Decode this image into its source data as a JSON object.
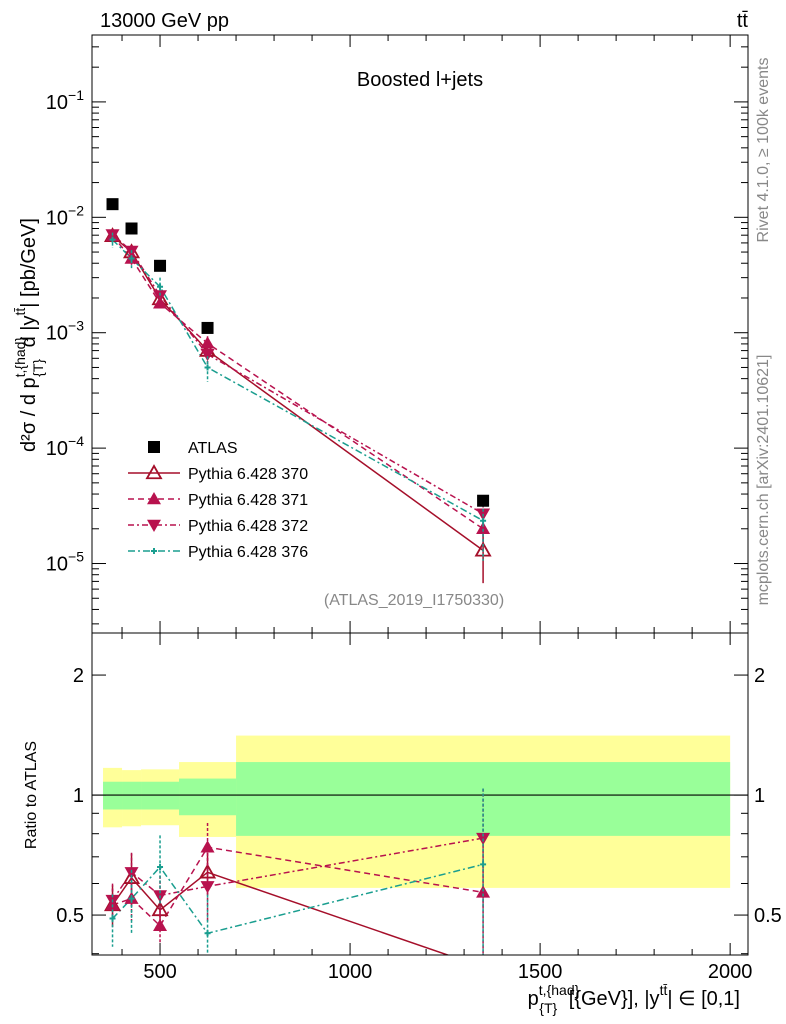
{
  "header": {
    "left": "13000 GeV pp",
    "right": "tt̄"
  },
  "side": {
    "rivet": "Rivet 4.1.0, ≥ 100k events",
    "mcplots": "mcplots.cern.ch [arXiv:2401.10621]"
  },
  "chart_data": {
    "type": "scatter",
    "title": "Boosted l+jets",
    "analysis": "(ATLAS_2019_I1750330)",
    "ylabel": {
      "main": "d²σ / d p",
      "sup1": "t,{had}",
      "sub1": "{T}",
      "mid": " d |y",
      "sup2": "tt̄",
      "end": "| [pb/GeV]"
    },
    "xlabel": {
      "main": "p",
      "sup1": "t,{had}",
      "sub1": "{T}",
      "mid": " [{GeV}], |y",
      "sup2": "tt̄",
      "end": "| ∈ [0,1]"
    },
    "ratio_ylabel": "Ratio to ATLAS",
    "xlim": [
      321,
      2047
    ],
    "ylim": [
      2.5e-06,
      0.38
    ],
    "ratio_ylim": [
      0.397,
      2.55
    ],
    "log_y": true,
    "x_ticks": [
      500,
      1000,
      1500,
      2000
    ],
    "x_tick_labels": [
      "500",
      "1000",
      "1500",
      "2000"
    ],
    "y_ticks": [
      {
        "exp": "−1",
        "v": 0.1
      },
      {
        "exp": "−2",
        "v": 0.01
      },
      {
        "exp": "−3",
        "v": 0.001
      },
      {
        "exp": "−4",
        "v": 0.0001
      },
      {
        "exp": "−5",
        "v": 1e-05
      }
    ],
    "ratio_ticks": [
      {
        "label": "2",
        "v": 2
      },
      {
        "label": "1",
        "v": 1
      },
      {
        "label": "0.5",
        "v": 0.5
      }
    ],
    "legend_position": "middle-left",
    "x": [
      375,
      425,
      500,
      625,
      1350
    ],
    "bin_edges": [
      350,
      400,
      450,
      550,
      700,
      2000
    ],
    "data": {
      "name": "ATLAS",
      "values": [
        0.013,
        0.008,
        0.0038,
        0.0011,
        3.5e-05
      ],
      "stat_band": [
        [
          0.92,
          1.08
        ],
        [
          0.92,
          1.08
        ],
        [
          0.92,
          1.08
        ],
        [
          0.89,
          1.1
        ],
        [
          0.79,
          1.21
        ]
      ],
      "total_band": [
        [
          0.83,
          1.17
        ],
        [
          0.835,
          1.155
        ],
        [
          0.84,
          1.16
        ],
        [
          0.785,
          1.21
        ],
        [
          0.585,
          1.41
        ]
      ]
    },
    "series": [
      {
        "name": "Pythia 6.428 370",
        "color": "#a50f2a",
        "marker": "open-up",
        "dash": "",
        "values": [
          0.0069,
          0.005,
          0.00196,
          0.0007,
          1.3e-05
        ],
        "ratio": [
          0.53,
          0.62,
          0.515,
          0.64,
          0.37
        ],
        "rel_err": [
          0.12,
          0.15,
          0.1,
          0.12,
          0.48
        ]
      },
      {
        "name": "Pythia 6.428 371",
        "color": "#b8124e",
        "marker": "up",
        "dash": "6,4",
        "values": [
          0.0069,
          0.0044,
          0.0018,
          0.00081,
          2e-05
        ],
        "ratio": [
          0.53,
          0.55,
          0.47,
          0.74,
          0.57
        ],
        "rel_err": [
          0.1,
          0.12,
          0.1,
          0.15,
          0.35
        ]
      },
      {
        "name": "Pythia 6.428 372",
        "color": "#b8124e",
        "marker": "down",
        "dash": "6,3,2,3",
        "values": [
          0.0071,
          0.0051,
          0.0021,
          0.00065,
          2.7e-05
        ],
        "ratio": [
          0.545,
          0.64,
          0.56,
          0.59,
          0.78
        ],
        "rel_err": [
          0.1,
          0.12,
          0.12,
          0.18,
          0.33
        ]
      },
      {
        "name": "Pythia 6.428 376",
        "color": "#1a9e8f",
        "marker": "cross",
        "dash": "7,3,2,3",
        "values": [
          0.0064,
          0.0044,
          0.0025,
          0.0005,
          2.35e-05
        ],
        "ratio": [
          0.49,
          0.55,
          0.66,
          0.45,
          0.67
        ],
        "rel_err": [
          0.15,
          0.18,
          0.2,
          0.25,
          0.55
        ]
      }
    ]
  }
}
